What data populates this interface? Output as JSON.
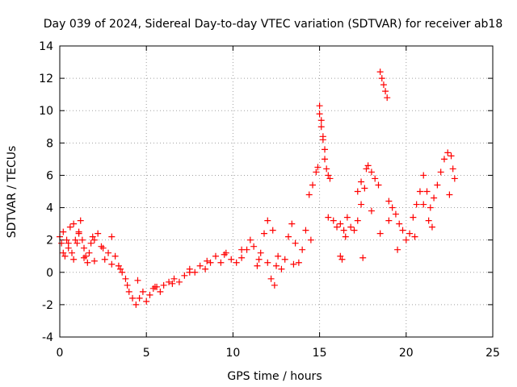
{
  "chart_data": {
    "type": "scatter",
    "title": "Day 039 of 2024, Sidereal Day-to-day VTEC variation (SDTVAR) for receiver ab18",
    "xlabel": "GPS time / hours",
    "ylabel": "SDTVAR / TECUs",
    "xlim": [
      0,
      25
    ],
    "ylim": [
      -4,
      14
    ],
    "xticks": [
      0,
      5,
      10,
      15,
      20,
      25
    ],
    "yticks": [
      -4,
      -2,
      0,
      2,
      4,
      6,
      8,
      10,
      12,
      14
    ],
    "grid": true,
    "marker": "+",
    "color": "#ff0000",
    "series": [
      {
        "name": "SDTVAR",
        "x": [
          0.0,
          0.1,
          0.2,
          0.3,
          0.4,
          0.5,
          0.6,
          0.7,
          0.8,
          0.9,
          1.0,
          1.1,
          1.2,
          1.3,
          1.4,
          1.5,
          1.6,
          1.7,
          1.8,
          1.9,
          2.0,
          2.2,
          2.4,
          2.6,
          2.8,
          3.0,
          3.2,
          3.4,
          3.6,
          3.8,
          3.9,
          4.0,
          4.2,
          4.4,
          4.6,
          4.8,
          5.0,
          5.2,
          5.4,
          5.6,
          5.8,
          6.0,
          6.3,
          6.6,
          6.9,
          7.2,
          7.5,
          7.8,
          8.1,
          8.4,
          8.7,
          9.0,
          9.3,
          9.6,
          9.9,
          10.2,
          10.5,
          10.8,
          11.0,
          11.2,
          11.4,
          11.6,
          11.8,
          12.0,
          12.2,
          12.4,
          12.6,
          12.8,
          13.0,
          13.2,
          13.4,
          13.6,
          13.8,
          14.0,
          14.2,
          14.4,
          14.6,
          14.8,
          14.9,
          15.0,
          15.1,
          15.2,
          15.3,
          15.4,
          15.5,
          15.6,
          15.8,
          16.0,
          16.2,
          16.4,
          16.6,
          16.8,
          17.0,
          17.2,
          17.4,
          17.6,
          17.7,
          17.8,
          18.0,
          18.2,
          18.4,
          18.5,
          18.6,
          18.7,
          18.8,
          18.9,
          19.0,
          19.2,
          19.4,
          19.6,
          19.8,
          20.0,
          20.2,
          20.4,
          20.6,
          20.8,
          21.0,
          21.2,
          21.4,
          21.6,
          21.8,
          22.0,
          22.2,
          22.4,
          22.6,
          22.7,
          22.8,
          0.2,
          0.5,
          0.8,
          1.1,
          1.4,
          2.0,
          2.5,
          3.0,
          3.5,
          4.5,
          5.5,
          6.5,
          7.5,
          8.5,
          9.5,
          10.5,
          11.5,
          12.5,
          13.5,
          14.5,
          15.5,
          16.5,
          17.5,
          18.0,
          18.5,
          19.0,
          19.5,
          20.5,
          21.5,
          22.5,
          15.0,
          15.1,
          15.2,
          15.3,
          16.2,
          16.3,
          17.2,
          17.4,
          21.0,
          21.3,
          12.0,
          12.3
        ],
        "y": [
          2.2,
          1.8,
          2.5,
          1.0,
          2.0,
          1.5,
          2.8,
          1.2,
          3.0,
          2.0,
          1.8,
          2.5,
          3.2,
          2.0,
          1.5,
          1.0,
          0.6,
          1.2,
          1.8,
          2.2,
          2.0,
          2.4,
          1.6,
          0.8,
          1.2,
          2.2,
          1.0,
          0.4,
          0.0,
          -0.4,
          -0.8,
          -1.2,
          -1.6,
          -2.0,
          -1.6,
          -1.2,
          -1.8,
          -1.4,
          -1.0,
          -0.9,
          -1.2,
          -0.8,
          -0.6,
          -0.4,
          -0.6,
          -0.2,
          0.2,
          0.0,
          0.4,
          0.2,
          0.6,
          1.0,
          0.6,
          1.2,
          0.8,
          0.6,
          0.9,
          1.4,
          2.0,
          1.6,
          0.4,
          1.2,
          2.4,
          0.6,
          -0.4,
          -0.8,
          1.0,
          0.2,
          0.8,
          2.2,
          3.0,
          1.8,
          0.6,
          1.4,
          2.6,
          4.8,
          5.4,
          6.2,
          6.5,
          10.3,
          9.4,
          8.2,
          7.0,
          6.4,
          6.0,
          5.8,
          3.2,
          2.8,
          3.0,
          2.6,
          3.4,
          2.8,
          2.6,
          3.2,
          4.2,
          5.2,
          6.4,
          6.6,
          6.2,
          5.8,
          5.4,
          12.4,
          12.0,
          11.6,
          11.2,
          10.8,
          4.4,
          4.0,
          3.6,
          3.0,
          2.6,
          2.0,
          2.4,
          3.4,
          4.2,
          5.0,
          6.0,
          5.0,
          4.0,
          4.6,
          5.4,
          6.2,
          7.0,
          7.4,
          7.2,
          6.4,
          5.8,
          1.2,
          1.8,
          0.8,
          2.4,
          0.9,
          0.7,
          1.5,
          0.5,
          0.2,
          -0.5,
          -0.9,
          -0.7,
          0.0,
          0.7,
          1.1,
          1.4,
          0.8,
          0.4,
          0.5,
          2.0,
          3.4,
          2.2,
          0.9,
          3.8,
          2.4,
          3.2,
          1.4,
          2.2,
          2.8,
          4.8,
          9.8,
          9.0,
          8.4,
          7.6,
          1.0,
          0.8,
          5.0,
          5.6,
          4.2,
          3.2,
          3.2,
          2.6
        ]
      }
    ]
  }
}
